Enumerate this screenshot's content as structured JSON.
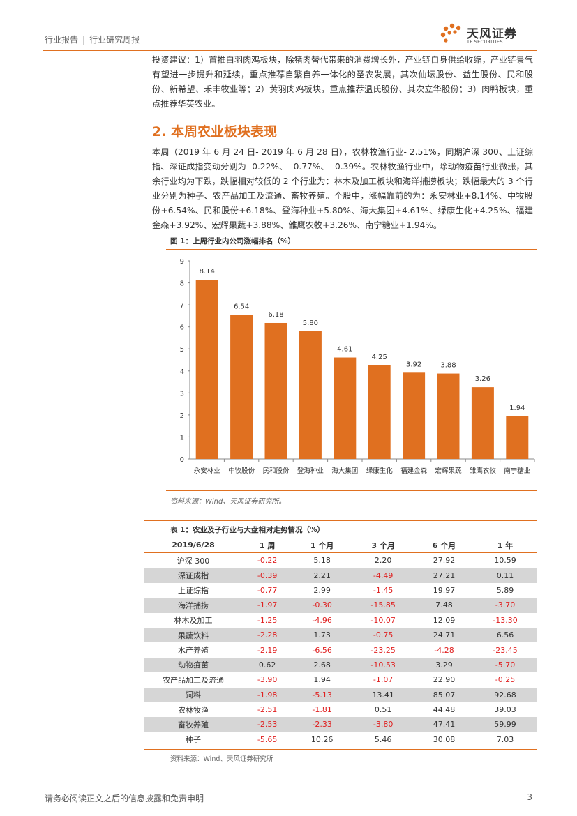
{
  "header": {
    "left": "行业报告",
    "right": "行业研究周报"
  },
  "logo": {
    "cn": "天风证券",
    "en": "TF SECURITIES"
  },
  "para1": "投资建议：1）首推白羽肉鸡板块，除猪肉替代带来的消费增长外，产业链自身供给收缩，产业链景气有望进一步提升和延续，重点推荐自繁自养一体化的圣农发展，其次仙坛股份、益生股份、民和股份、新希望、禾丰牧业等；2）黄羽肉鸡板块，重点推荐温氏股份、其次立华股份；3）肉鸭板块，重点推荐华英农业。",
  "section_title": "2. 本周农业板块表现",
  "para2": "本周（2019 年 6 月 24 日- 2019 年 6 月 28 日），农林牧渔行业- 2.51%，同期沪深 300、上证综指、深证成指变动分别为- 0.22%、- 0.77%、- 0.39%。农林牧渔行业中，除动物疫苗行业微涨，其余行业均为下跌，跌幅相对较低的 2 个行业为：林木及加工板块和海洋捕捞板块；跌幅最大的 3 个行业分别为种子、农产品加工及流通、畜牧养殖。个股中，涨幅靠前的为：永安林业+8.14%、中牧股份+6.54%、民和股份+6.18%、登海种业+5.80%、海大集团+4.61%、绿康生化+4.25%、福建金森+3.92%、宏辉果蔬+3.88%、雏鹰农牧+3.26%、南宁糖业+1.94%。",
  "figure_title": "图 1：上周行业内公司涨幅排名（%）",
  "figure_source": "资料来源：Wind、天风证券研究所。",
  "chart_data": {
    "type": "bar",
    "title": "上周行业内公司涨幅排名（%）",
    "categories": [
      "永安林业",
      "中牧股份",
      "民和股份",
      "登海种业",
      "海大集团",
      "绿康生化",
      "福建金森",
      "宏辉果蔬",
      "雏鹰农牧",
      "南宁糖业"
    ],
    "values": [
      8.14,
      6.54,
      6.18,
      5.8,
      4.61,
      4.25,
      3.92,
      3.88,
      3.26,
      1.94
    ],
    "labels": [
      "8.14",
      "6.54",
      "6.18",
      "5.80",
      "4.61",
      "4.25",
      "3.92",
      "3.88",
      "3.26",
      "1.94"
    ],
    "yticks": [
      "0",
      "1",
      "2",
      "3",
      "4",
      "5",
      "6",
      "7",
      "8",
      "9"
    ],
    "ylim": [
      0,
      9
    ],
    "bar_color": "#e07020",
    "xlabel": "",
    "ylabel": ""
  },
  "table": {
    "title": "表 1：农业及子行业与大盘相对走势情况（%）",
    "headers": [
      "2019/6/28",
      "1 周",
      "1 个月",
      "3 个月",
      "6 个月",
      "1 年"
    ],
    "rows": [
      [
        "沪深 300",
        "-0.22",
        "5.18",
        "2.20",
        "27.92",
        "10.59"
      ],
      [
        "深证成指",
        "-0.39",
        "2.21",
        "-4.49",
        "27.21",
        "0.11"
      ],
      [
        "上证综指",
        "-0.77",
        "2.99",
        "-1.45",
        "19.97",
        "5.89"
      ],
      [
        "海洋捕捞",
        "-1.97",
        "-0.30",
        "-15.85",
        "7.48",
        "-3.70"
      ],
      [
        "林木及加工",
        "-1.25",
        "-4.96",
        "-10.07",
        "12.09",
        "-13.30"
      ],
      [
        "果蔬饮料",
        "-2.28",
        "1.73",
        "-0.75",
        "24.71",
        "6.56"
      ],
      [
        "水产养殖",
        "-2.19",
        "-6.56",
        "-23.25",
        "-4.28",
        "-23.45"
      ],
      [
        "动物疫苗",
        "0.62",
        "2.68",
        "-10.53",
        "3.29",
        "-5.70"
      ],
      [
        "农产品加工及流通",
        "-3.90",
        "1.94",
        "-1.07",
        "22.90",
        "-0.25"
      ],
      [
        "饲料",
        "-1.98",
        "-5.13",
        "13.41",
        "85.07",
        "92.68"
      ],
      [
        "农林牧渔",
        "-2.51",
        "-1.81",
        "0.51",
        "44.48",
        "39.03"
      ],
      [
        "畜牧养殖",
        "-2.53",
        "-2.33",
        "-3.80",
        "47.41",
        "59.99"
      ],
      [
        "种子",
        "-5.65",
        "10.26",
        "5.46",
        "30.08",
        "7.03"
      ]
    ],
    "source": "资料来源：Wind、天风证券研究所"
  },
  "footer": {
    "disclaimer": "请务必阅读正文之后的信息披露和免责申明",
    "page": "3"
  }
}
